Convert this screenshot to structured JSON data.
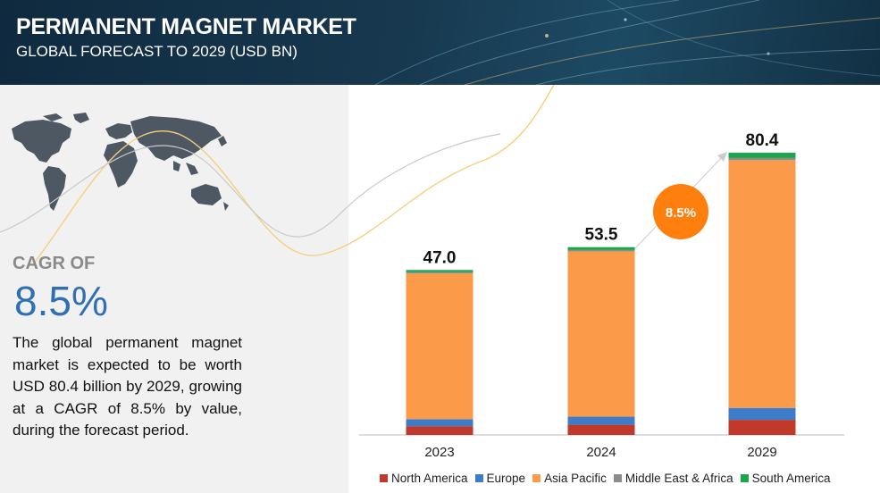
{
  "header": {
    "title": "PERMANENT MAGNET MARKET",
    "subtitle": "GLOBAL FORECAST TO 2029 (USD BN)"
  },
  "left": {
    "cagr_label": "CAGR OF",
    "cagr_value": "8.5%",
    "description": "The global permanent magnet market is expected to be worth USD  80.4 billion by 2029, growing at a CAGR of 8.5% by value, during the forecast period."
  },
  "chart_data": {
    "type": "bar",
    "stacked": true,
    "categories": [
      "2023",
      "2024",
      "2029"
    ],
    "totals": [
      "47.0",
      "53.5",
      "80.4"
    ],
    "series": [
      {
        "name": "North America",
        "color": "#c0392b",
        "values": [
          2.5,
          2.9,
          4.3
        ]
      },
      {
        "name": "Europe",
        "color": "#3d7cc9",
        "values": [
          2.0,
          2.3,
          3.4
        ]
      },
      {
        "name": "Asia Pacific",
        "color": "#fb9b4a",
        "values": [
          41.5,
          47.1,
          70.6
        ]
      },
      {
        "name": "Middle East & Africa",
        "color": "#8c8c8c",
        "values": [
          0.4,
          0.4,
          0.6
        ]
      },
      {
        "name": "South America",
        "color": "#1aa64a",
        "values": [
          0.6,
          0.8,
          1.5
        ]
      }
    ],
    "cagr_badge": "8.5%",
    "cagr_badge_color": "#ff7f0e",
    "grid": false,
    "legend_position": "bottom"
  }
}
